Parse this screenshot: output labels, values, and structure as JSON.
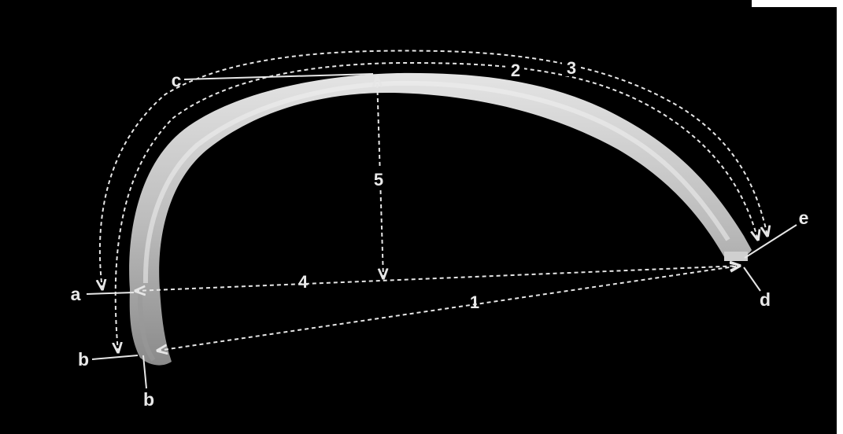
{
  "labels": {
    "a": "a",
    "b_left": "b",
    "b_bottom": "b",
    "c": "c",
    "d": "d",
    "e": "e"
  },
  "measurements": {
    "m1": "1",
    "m2": "2",
    "m3": "3",
    "m4": "4",
    "m5": "5"
  },
  "colors": {
    "background": "#000000",
    "annotation": "#e6e6e6",
    "bone_light": "#d6d6d6",
    "bone_shadow": "#7a7a7a"
  }
}
